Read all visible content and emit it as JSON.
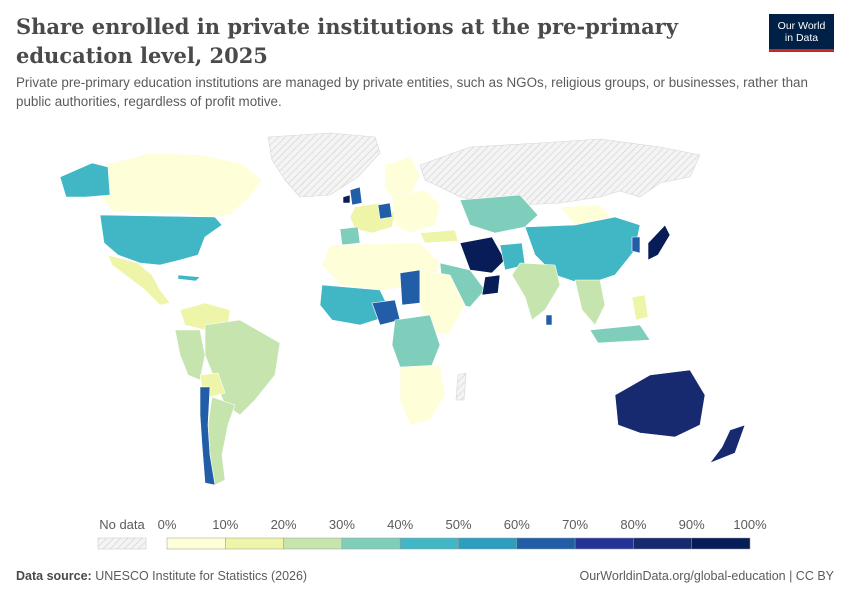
{
  "header": {
    "title": "Share enrolled in private institutions at the pre-primary education level, 2025",
    "subtitle": "Private pre-primary education institutions are managed by private entities, such as NGOs, religious groups, or businesses, rather than public authorities, regardless of profit motive."
  },
  "logo": {
    "line1": "Our World",
    "line2": "in Data"
  },
  "legend": {
    "no_data_label": "No data",
    "ticks": [
      "0%",
      "10%",
      "20%",
      "30%",
      "40%",
      "50%",
      "60%",
      "70%",
      "80%",
      "90%",
      "100%"
    ],
    "colors": [
      "#fefed8",
      "#eef5a8",
      "#c6e5ae",
      "#7fcdbb",
      "#41b6c4",
      "#2c9ec0",
      "#225ea8",
      "#253494",
      "#172a6f",
      "#081d58"
    ]
  },
  "footer": {
    "source_label": "Data source:",
    "source_text": "UNESCO Institute for Statistics (2026)",
    "url_text": "OurWorldinData.org/global-education | CC BY"
  },
  "colors": {
    "no_data": "#eeeeee",
    "border": "#ffffff",
    "title": "#4a4a4a",
    "logo_bg": "#002147",
    "logo_accent": "#ce261e"
  }
}
